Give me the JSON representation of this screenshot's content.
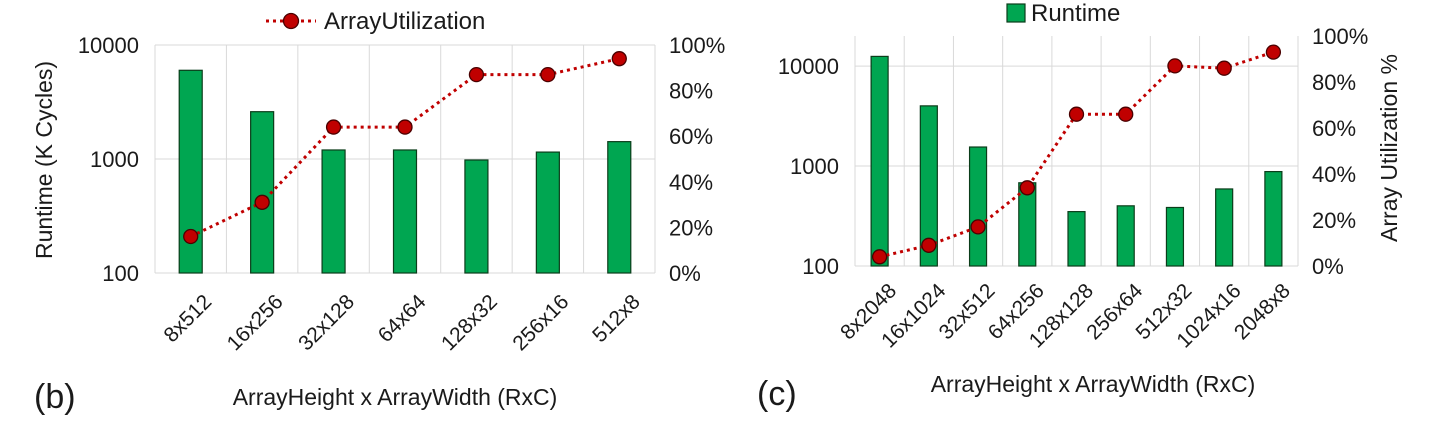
{
  "chart_data": [
    {
      "type": "bar",
      "panel_label": "(b)",
      "categories": [
        "8x512",
        "16x256",
        "32x128",
        "64x64",
        "128x32",
        "256x16",
        "512x8"
      ],
      "series": [
        {
          "name": "Runtime",
          "axis": "left",
          "type": "bar",
          "values": [
            6000,
            2600,
            1200,
            1200,
            980,
            1150,
            1420
          ]
        },
        {
          "name": "ArrayUtilization",
          "axis": "right",
          "type": "line",
          "values": [
            16,
            31,
            64,
            64,
            87,
            87,
            94
          ]
        }
      ],
      "legend": {
        "labels": [
          "ArrayUtilization"
        ],
        "placement": "top"
      },
      "xlabel": "ArrayHeight x ArrayWidth (RxC)",
      "ylabel": "Runtime (K Cycles)",
      "y2label": "",
      "y_scale": "log",
      "ylim": [
        100,
        10000
      ],
      "y_ticks": [
        "100",
        "1000",
        "10000"
      ],
      "y2lim": [
        0,
        100
      ],
      "y2_ticks": [
        "0%",
        "20%",
        "40%",
        "60%",
        "80%",
        "100%"
      ],
      "grid": true,
      "colors": {
        "bar": "#00a651",
        "line": "#c00000"
      }
    },
    {
      "type": "bar",
      "panel_label": "(c)",
      "categories": [
        "8x2048",
        "16x1024",
        "32x512",
        "64x256",
        "128x128",
        "256x64",
        "512x32",
        "1024x16",
        "2048x8"
      ],
      "series": [
        {
          "name": "Runtime",
          "axis": "left",
          "type": "bar",
          "values": [
            12500,
            4000,
            1550,
            680,
            350,
            400,
            385,
            590,
            880
          ]
        },
        {
          "name": "",
          "axis": "right",
          "type": "line",
          "values": [
            4,
            9,
            17,
            34,
            66,
            66,
            87,
            86,
            93
          ]
        }
      ],
      "legend": {
        "labels": [
          "Runtime"
        ],
        "placement": "top"
      },
      "xlabel": "ArrayHeight x ArrayWidth (RxC)",
      "ylabel": "",
      "y2label": "Array Utilization %",
      "y_scale": "log",
      "ylim": [
        100,
        20000
      ],
      "y_ticks": [
        "100",
        "1000",
        "10000"
      ],
      "y2lim": [
        0,
        100
      ],
      "y2_ticks": [
        "0%",
        "20%",
        "40%",
        "60%",
        "80%",
        "100%"
      ],
      "grid": true,
      "colors": {
        "bar": "#00a651",
        "line": "#c00000"
      }
    }
  ]
}
